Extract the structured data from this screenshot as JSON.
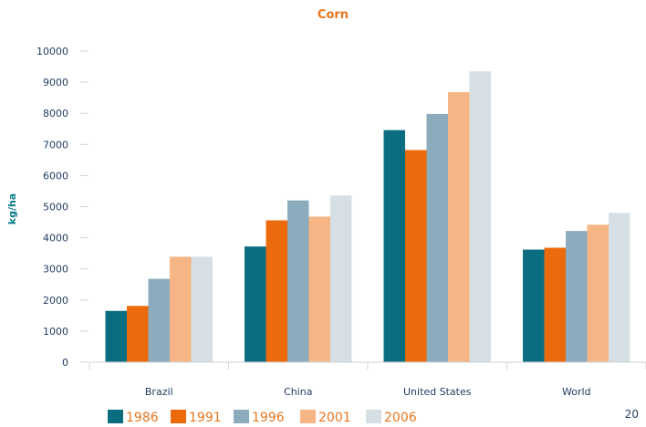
{
  "page_number": "20",
  "chart_data": {
    "type": "bar",
    "title": "Corn",
    "ylabel": "kg/ha",
    "xlabel": "",
    "ylim": [
      0,
      10000
    ],
    "yticks": [
      0,
      1000,
      2000,
      3000,
      4000,
      5000,
      6000,
      7000,
      8000,
      9000,
      10000
    ],
    "grid": false,
    "legend_position": "bottom",
    "categories": [
      "Brazil",
      "China",
      "United States",
      "World"
    ],
    "series": [
      {
        "name": "1986",
        "color": "#0b6e80",
        "values": [
          1650,
          3720,
          7460,
          3620
        ]
      },
      {
        "name": "1991",
        "color": "#eb6b0c",
        "values": [
          1810,
          4560,
          6820,
          3680
        ]
      },
      {
        "name": "1996",
        "color": "#8cacbd",
        "values": [
          2680,
          5200,
          7980,
          4220
        ]
      },
      {
        "name": "2001",
        "color": "#f5b585",
        "values": [
          3390,
          4680,
          8680,
          4420
        ]
      },
      {
        "name": "2006",
        "color": "#d6dfe3",
        "values": [
          3390,
          5360,
          9350,
          4800
        ]
      }
    ],
    "colors": {
      "title": "#e8761e",
      "axis_text": "#1f3a5f",
      "ylabel": "#0b7f8a",
      "legend_text": "#e8761e"
    }
  }
}
